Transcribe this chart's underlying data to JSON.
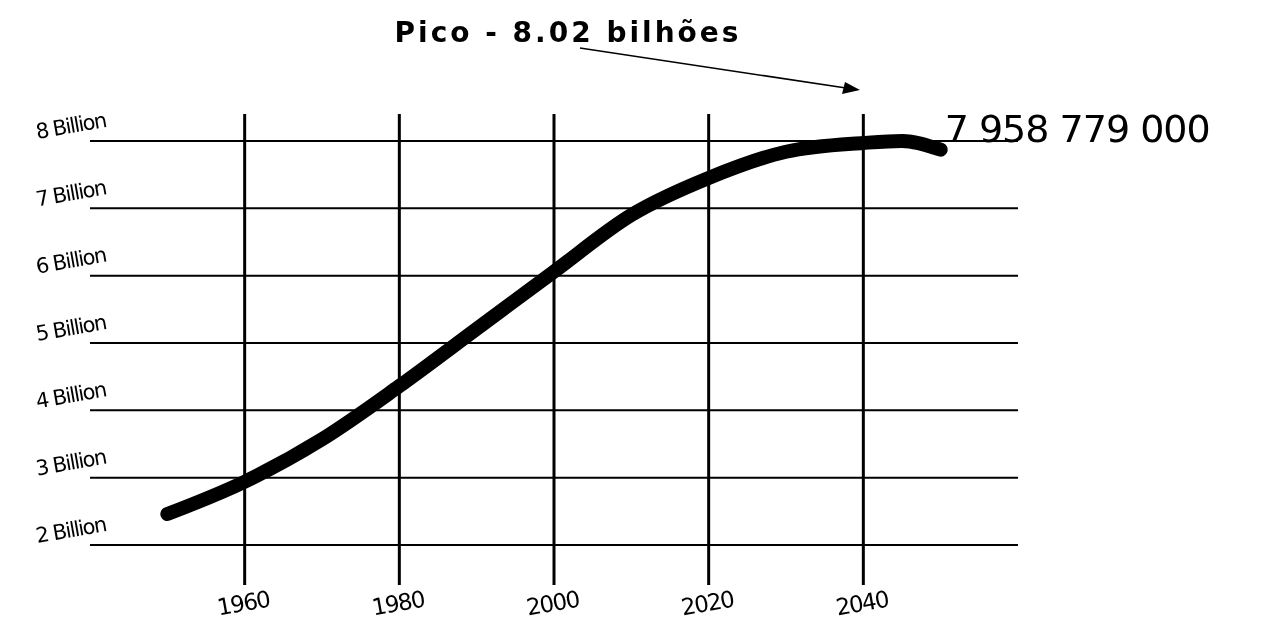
{
  "chart_data": {
    "type": "line",
    "annotations": [
      "Pico - 8.02 bilhões",
      "7 958 779 000"
    ],
    "x": [
      1950,
      1960,
      1970,
      1980,
      1990,
      2000,
      2010,
      2020,
      2030,
      2040,
      2045,
      2050
    ],
    "series": [
      {
        "color": "#000000",
        "values": [
          2.46,
          2.94,
          3.57,
          4.36,
          5.21,
          6.06,
          6.9,
          7.45,
          7.84,
          7.97,
          8.0,
          7.87
        ]
      }
    ],
    "xlim": [
      1940,
      2060
    ],
    "xticks": [
      1960,
      1980,
      2000,
      2020,
      2040
    ],
    "ylim": [
      2,
      8.4
    ],
    "yticks": [
      {
        "value": 2,
        "label": "2 Billion"
      },
      {
        "value": 3,
        "label": "3 Billion"
      },
      {
        "value": 4,
        "label": "4 Billion"
      },
      {
        "value": 5,
        "label": "5 Billion"
      },
      {
        "value": 6,
        "label": "6 Billion"
      },
      {
        "value": 7,
        "label": "7 Billion"
      },
      {
        "value": 8,
        "label": "8 Billion"
      }
    ],
    "grid": true,
    "marker": "none",
    "line_style": "solid"
  }
}
